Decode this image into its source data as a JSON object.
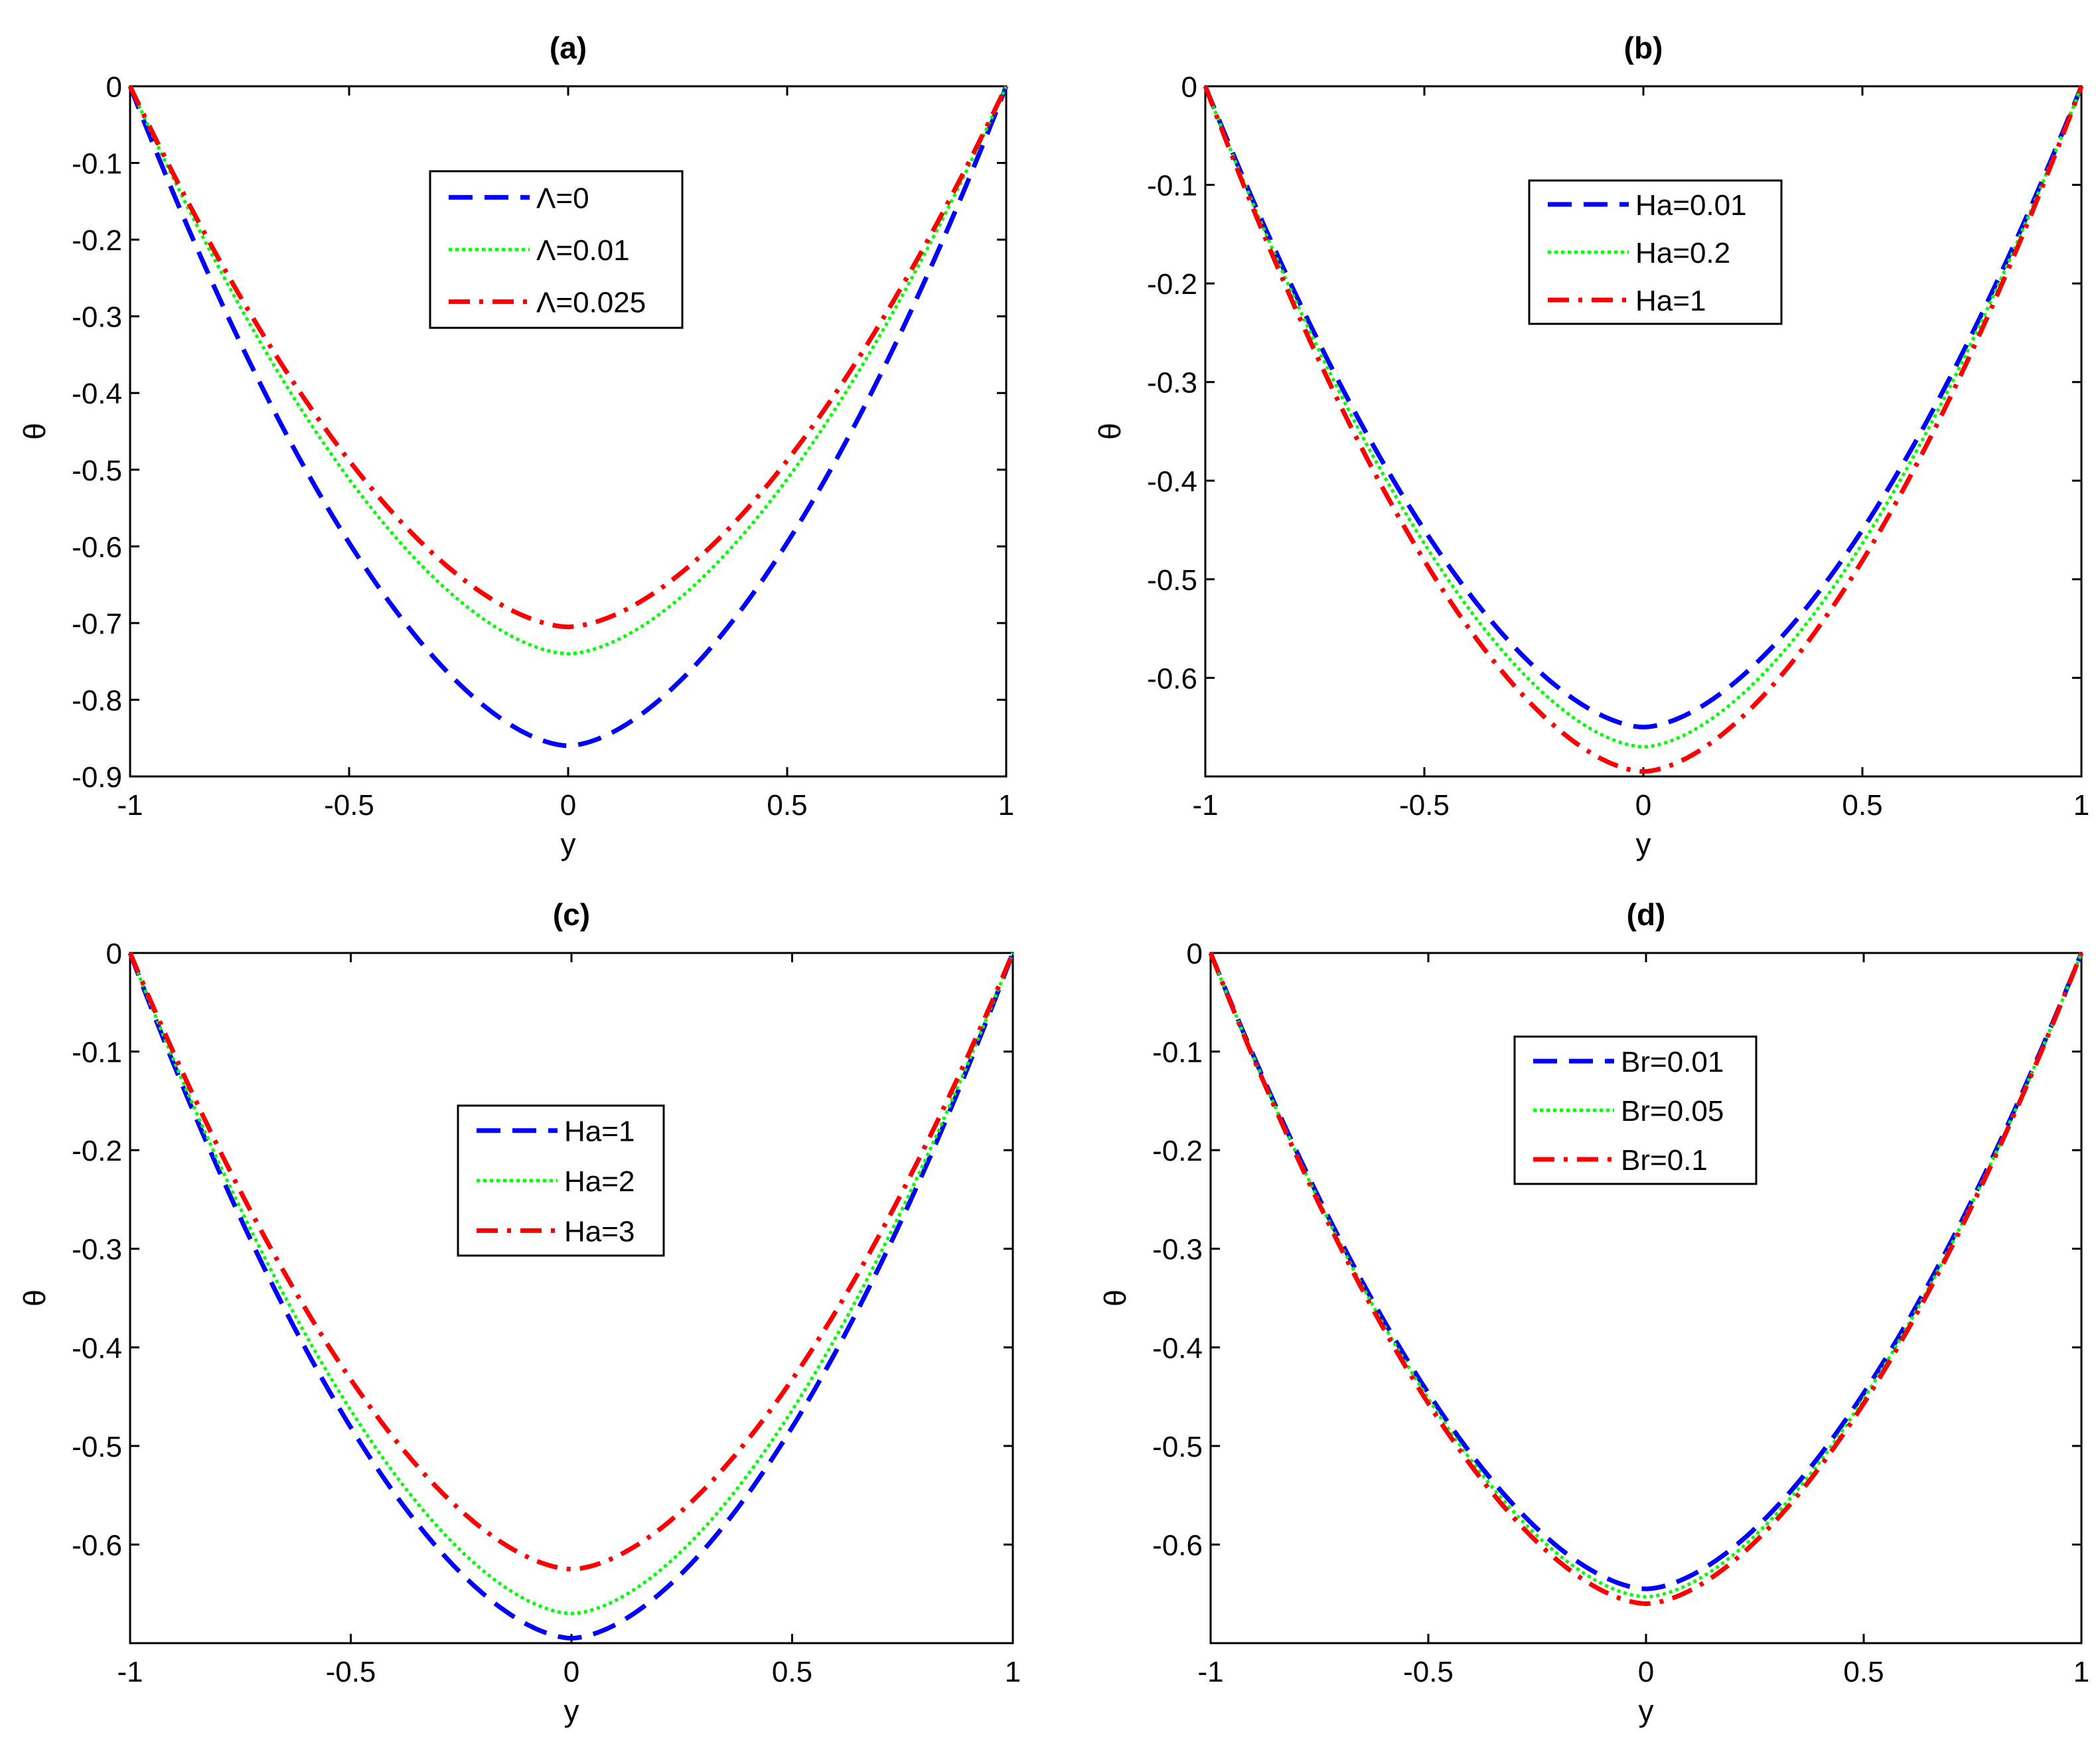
{
  "chart_data": [
    {
      "type": "line",
      "title": "(a)",
      "xlabel": "y",
      "ylabel": "θ",
      "xlim": [
        -1,
        1
      ],
      "ylim": [
        -0.9,
        0
      ],
      "xticks": [
        -1,
        -0.5,
        0,
        0.5,
        1
      ],
      "xtick_labels": [
        "-1",
        "-0.5",
        "0",
        "0.5",
        "1"
      ],
      "yticks": [
        0,
        -0.1,
        -0.2,
        -0.3,
        -0.4,
        -0.5,
        -0.6,
        -0.7,
        -0.8,
        -0.9
      ],
      "ytick_labels": [
        "0",
        "-0.1",
        "-0.2",
        "-0.3",
        "-0.4",
        "-0.5",
        "-0.6",
        "-0.7",
        "-0.8",
        "-0.9"
      ],
      "grid": false,
      "legend_position": "top-center",
      "series": [
        {
          "name": "Λ=0",
          "color": "#0000ff",
          "style": "dashed",
          "min": -0.86
        },
        {
          "name": "Λ=0.01",
          "color": "#00ff00",
          "style": "dotted",
          "min": -0.74
        },
        {
          "name": "Λ=0.025",
          "color": "#ff0000",
          "style": "dashdot",
          "min": -0.705
        }
      ]
    },
    {
      "type": "line",
      "title": "(b)",
      "xlabel": "y",
      "ylabel": "θ",
      "xlim": [
        -1,
        1
      ],
      "ylim": [
        -0.7,
        0
      ],
      "xticks": [
        -1,
        -0.5,
        0,
        0.5,
        1
      ],
      "xtick_labels": [
        "-1",
        "-0.5",
        "0",
        "0.5",
        "1"
      ],
      "yticks": [
        0,
        -0.1,
        -0.2,
        -0.3,
        -0.4,
        -0.5,
        -0.6
      ],
      "ytick_labels": [
        "0",
        "-0.1",
        "-0.2",
        "-0.3",
        "-0.4",
        "-0.5",
        "-0.6"
      ],
      "grid": false,
      "legend_position": "top-center",
      "series": [
        {
          "name": "Ha=0.01",
          "color": "#0000ff",
          "style": "dashed",
          "min": -0.65
        },
        {
          "name": "Ha=0.2",
          "color": "#00ff00",
          "style": "dotted",
          "min": -0.67
        },
        {
          "name": "Ha=1",
          "color": "#ff0000",
          "style": "dashdot",
          "min": -0.695
        }
      ]
    },
    {
      "type": "line",
      "title": "(c)",
      "xlabel": "y",
      "ylabel": "θ",
      "xlim": [
        -1,
        1
      ],
      "ylim": [
        -0.7,
        0
      ],
      "xticks": [
        -1,
        -0.5,
        0,
        0.5,
        1
      ],
      "xtick_labels": [
        "-1",
        "-0.5",
        "0",
        "0.5",
        "1"
      ],
      "yticks": [
        0,
        -0.1,
        -0.2,
        -0.3,
        -0.4,
        -0.5,
        -0.6
      ],
      "ytick_labels": [
        "0",
        "-0.1",
        "-0.2",
        "-0.3",
        "-0.4",
        "-0.5",
        "-0.6"
      ],
      "grid": false,
      "legend_position": "center",
      "series": [
        {
          "name": "Ha=1",
          "color": "#0000ff",
          "style": "dashed",
          "min": -0.695
        },
        {
          "name": "Ha=2",
          "color": "#00ff00",
          "style": "dotted",
          "min": -0.67
        },
        {
          "name": "Ha=3",
          "color": "#ff0000",
          "style": "dashdot",
          "min": -0.625
        }
      ]
    },
    {
      "type": "line",
      "title": "(d)",
      "xlabel": "y",
      "ylabel": "θ",
      "xlim": [
        -1,
        1
      ],
      "ylim": [
        -0.7,
        0
      ],
      "xticks": [
        -1,
        -0.5,
        0,
        0.5,
        1
      ],
      "xtick_labels": [
        "-1",
        "-0.5",
        "0",
        "0.5",
        "1"
      ],
      "yticks": [
        0,
        -0.1,
        -0.2,
        -0.3,
        -0.4,
        -0.5,
        -0.6
      ],
      "ytick_labels": [
        "0",
        "-0.1",
        "-0.2",
        "-0.3",
        "-0.4",
        "-0.5",
        "-0.6"
      ],
      "grid": false,
      "legend_position": "top-center",
      "series": [
        {
          "name": "Br=0.01",
          "color": "#0000ff",
          "style": "dashed",
          "min": -0.645
        },
        {
          "name": "Br=0.05",
          "color": "#00ff00",
          "style": "dotted",
          "min": -0.653
        },
        {
          "name": "Br=0.1",
          "color": "#ff0000",
          "style": "dashdot",
          "min": -0.66
        }
      ]
    }
  ]
}
